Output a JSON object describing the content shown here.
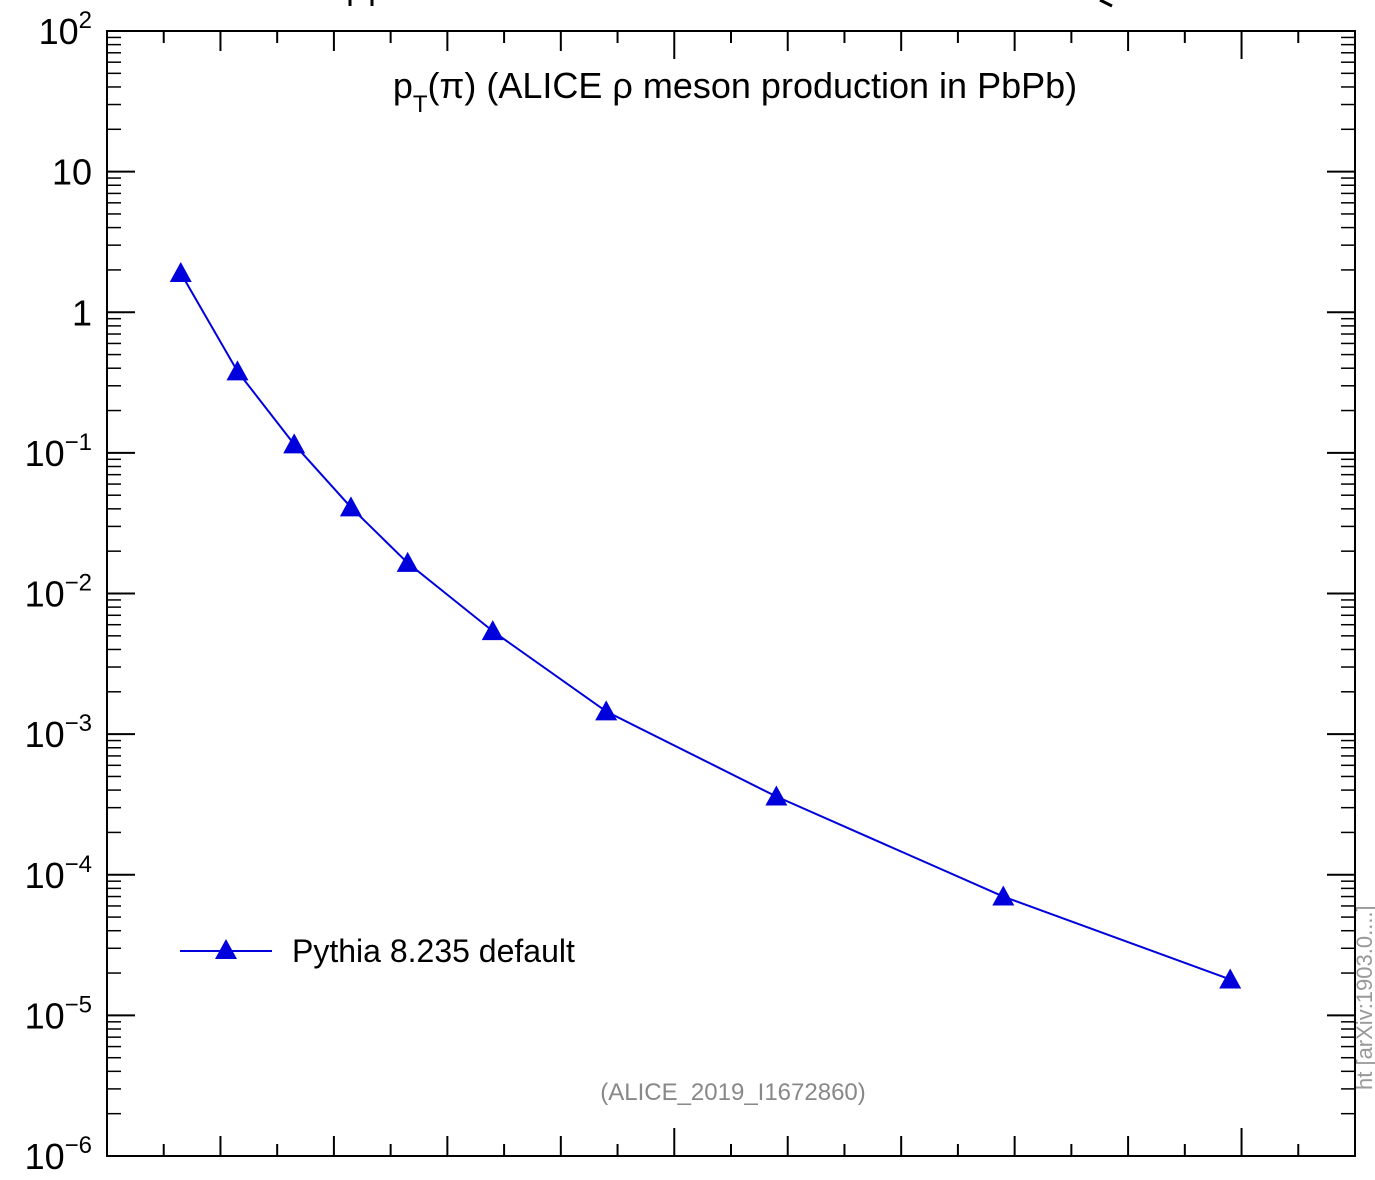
{
  "chart_data": {
    "type": "line",
    "title": "",
    "annotation": "(ALICE ρ meson production in PbPb)",
    "analysis_label": "(ALICE_2019_I1672860)",
    "side_label": "ht    [arXiv:1903.0....]",
    "xlabel": "",
    "ylabel": "",
    "y_scale": "log",
    "ylim": [
      1e-06,
      100
    ],
    "xlim": [
      0,
      11
    ],
    "x_tick_labels": [],
    "y_ticks": [
      {
        "mant": "10",
        "exp": "2",
        "value": 100
      },
      {
        "mant": "10",
        "exp": "",
        "value": 10
      },
      {
        "mant": "1",
        "exp": "",
        "value": 1
      },
      {
        "mant": "10",
        "exp": "−1",
        "value": 0.1
      },
      {
        "mant": "10",
        "exp": "−2",
        "value": 0.01
      },
      {
        "mant": "10",
        "exp": "−3",
        "value": 0.001
      },
      {
        "mant": "10",
        "exp": "−4",
        "value": 0.0001
      },
      {
        "mant": "10",
        "exp": "−5",
        "value": 1e-05
      },
      {
        "mant": "10",
        "exp": "−6",
        "value": 1e-06
      }
    ],
    "series": [
      {
        "name": "Pythia 8.235 default",
        "color": "#0000dd",
        "marker": "triangle-up",
        "x": [
          0.65,
          1.15,
          1.65,
          2.15,
          2.65,
          3.4,
          4.4,
          5.9,
          7.9,
          9.9
        ],
        "y": [
          1.9,
          0.38,
          0.115,
          0.041,
          0.0165,
          0.0054,
          0.00145,
          0.00036,
          7e-05,
          1.8e-05
        ]
      }
    ],
    "legend_position": "bottom-left",
    "grid": false
  }
}
